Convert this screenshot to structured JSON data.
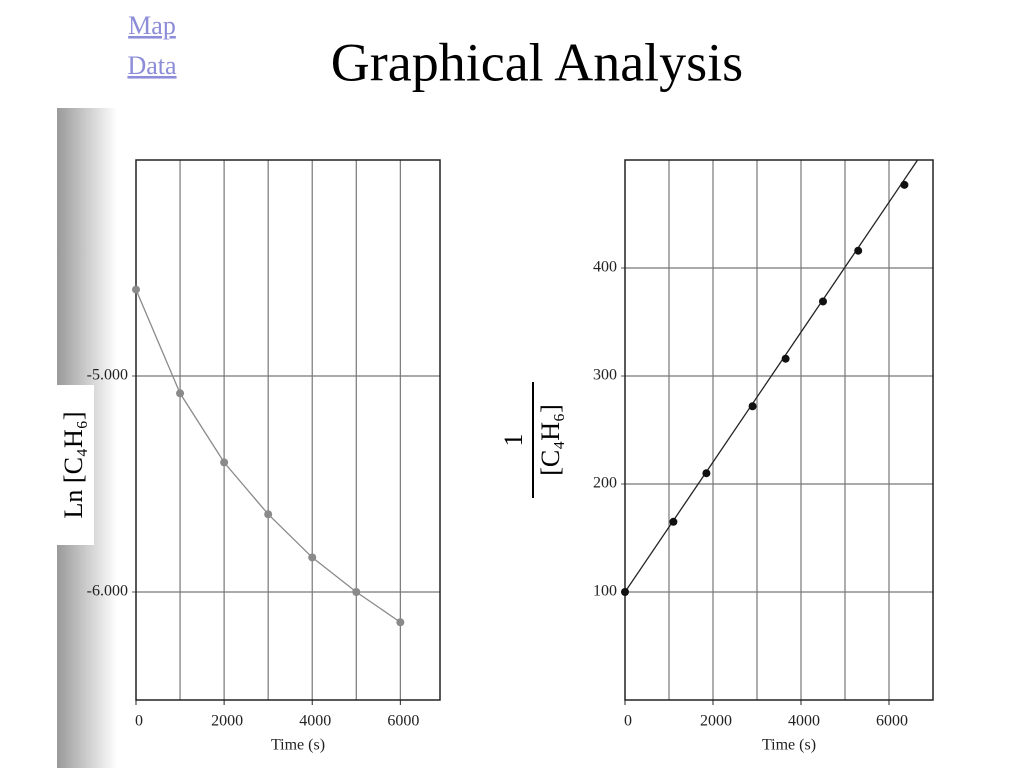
{
  "header": {
    "links": [
      "Map",
      "Data"
    ],
    "title": "Graphical Analysis"
  },
  "chart_data": [
    {
      "type": "scatter",
      "ylabel": "Ln [C₄H₆]",
      "xlabel": "Time (s)",
      "x": [
        0,
        1000,
        2000,
        3000,
        4000,
        5000,
        6000
      ],
      "series": [
        {
          "color": "#8a8a8a",
          "values": [
            -4.6,
            -5.08,
            -5.4,
            -5.64,
            -5.84,
            -6.0,
            -6.14
          ]
        }
      ],
      "connect": true,
      "xlim": [
        0,
        6900
      ],
      "ylim": [
        -6.5,
        -4
      ],
      "xticks": [
        0,
        2000,
        4000,
        6000
      ],
      "xgrid": [
        1000,
        2000,
        3000,
        4000,
        5000,
        6000
      ],
      "yticks": [
        {
          "value": -5,
          "label": "-5.000"
        },
        {
          "value": -6,
          "label": "-6.000"
        }
      ]
    },
    {
      "type": "scatter",
      "ylabel": [
        "1",
        "[C₄H₆]"
      ],
      "xlabel": "Time (s)",
      "x": [
        0,
        1100,
        1850,
        2900,
        3650,
        4500,
        5300,
        6350
      ],
      "series": [
        {
          "color": "#111111",
          "values": [
            100,
            165,
            210,
            272,
            316,
            369,
            416,
            477
          ]
        }
      ],
      "fit_line": {
        "x": [
          0,
          6650
        ],
        "y": [
          100,
          500
        ]
      },
      "xlim": [
        0,
        7000
      ],
      "ylim": [
        0,
        500
      ],
      "xticks": [
        0,
        2000,
        4000,
        6000
      ],
      "xgrid": [
        1000,
        2000,
        3000,
        4000,
        5000,
        6000
      ],
      "yticks": [
        100,
        200,
        300,
        400
      ]
    }
  ]
}
